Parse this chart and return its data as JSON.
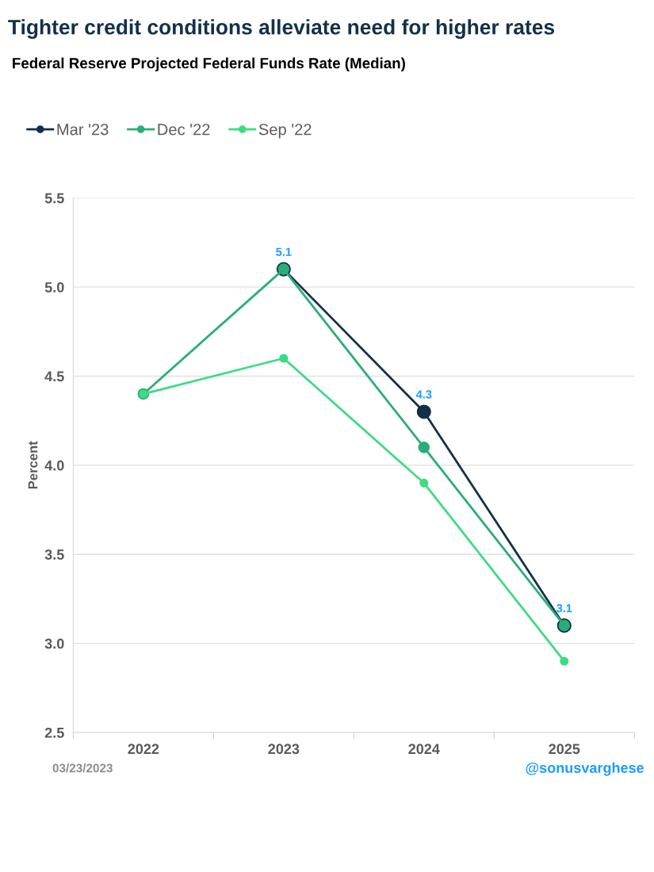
{
  "chart_data": {
    "type": "line",
    "title": "Tighter credit conditions alleviate need for higher rates",
    "subtitle": "Federal Reserve Projected Federal Funds Rate (Median)",
    "ylabel": "Percent",
    "categories": [
      "2022",
      "2023",
      "2024",
      "2025"
    ],
    "series": [
      {
        "name": "Mar '23",
        "color": "#13304a",
        "values": [
          null,
          5.1,
          4.3,
          3.1
        ],
        "value_labels": [
          null,
          "5.1",
          "4.3",
          "3.1"
        ]
      },
      {
        "name": "Dec '22",
        "color": "#2aae78",
        "values": [
          4.4,
          5.1,
          4.1,
          3.1
        ]
      },
      {
        "name": "Sep '22",
        "color": "#3ddc84",
        "values": [
          4.4,
          4.6,
          3.9,
          2.9
        ]
      }
    ],
    "ylim": [
      2.5,
      5.5
    ],
    "yticks": [
      {
        "value": 2.5,
        "label": "2.5"
      },
      {
        "value": 3,
        "label": "3.0"
      },
      {
        "value": 3.5,
        "label": "3.5"
      },
      {
        "value": 4,
        "label": "4.0"
      },
      {
        "value": 4.5,
        "label": "4.5"
      },
      {
        "value": 5,
        "label": "5.0"
      },
      {
        "value": 5.5,
        "label": "5.5"
      }
    ],
    "grid": "y",
    "legend": "top left",
    "marker": "circle",
    "line_style": "solid",
    "annotations": [
      "03/23/2023",
      "@sonusvarghese"
    ]
  }
}
